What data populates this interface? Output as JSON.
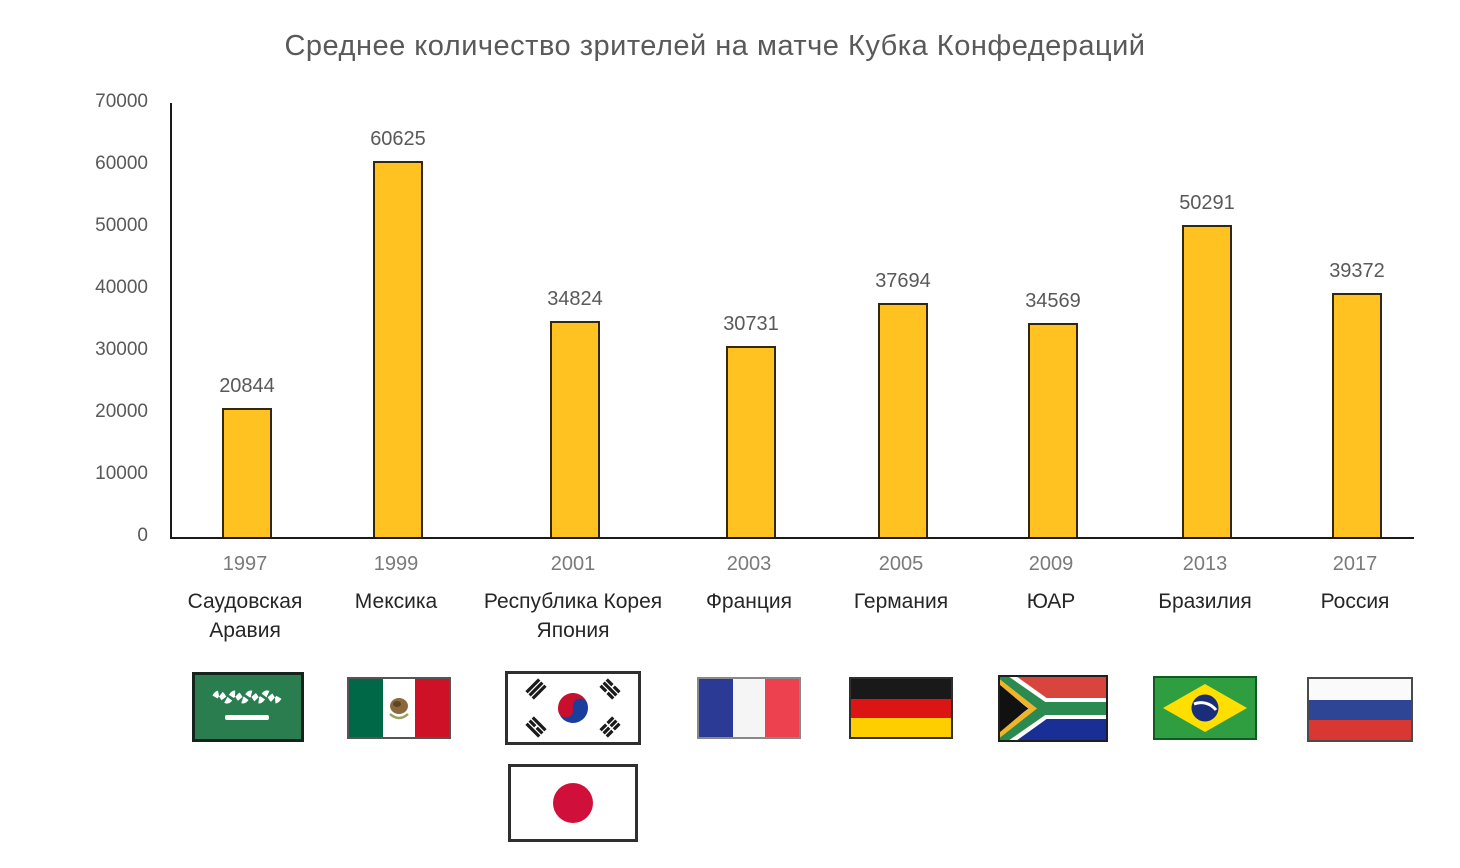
{
  "chart_data": {
    "type": "bar",
    "title": "Среднее количество зрителей на матче Кубка Конфедераций",
    "categories": [
      "1997",
      "1999",
      "2001",
      "2003",
      "2005",
      "2009",
      "2013",
      "2017"
    ],
    "host_countries": [
      "Саудовская Аравия",
      "Мексика",
      "Республика Корея Япония",
      "Франция",
      "Германия",
      "ЮАР",
      "Бразилия",
      "Россия"
    ],
    "host_labels": [
      [
        "Саудовская",
        "Аравия"
      ],
      [
        "Мексика"
      ],
      [
        "Республика Корея",
        "Япония"
      ],
      [
        "Франция"
      ],
      [
        "Германия"
      ],
      [
        "ЮАР"
      ],
      [
        "Бразилия"
      ],
      [
        "Россия"
      ]
    ],
    "values": [
      20844,
      60625,
      34824,
      30731,
      37694,
      34569,
      50291,
      39372
    ],
    "ylim": [
      0,
      70000
    ],
    "ytick_step": 10000,
    "yticks": [
      0,
      10000,
      20000,
      30000,
      40000,
      50000,
      60000,
      70000
    ],
    "xlabel": "",
    "ylabel": "",
    "grid": false,
    "legend": false,
    "bar_color": "#FFC221",
    "bar_border_color": "#33270C",
    "axis_color": "#1A1A1A",
    "title_color": "#595959",
    "flag_icons": [
      "flag-saudi-arabia",
      "flag-mexico",
      "flag-south-korea",
      "flag-france",
      "flag-germany",
      "flag-south-africa",
      "flag-brazil",
      "flag-russia",
      "flag-japan"
    ]
  }
}
